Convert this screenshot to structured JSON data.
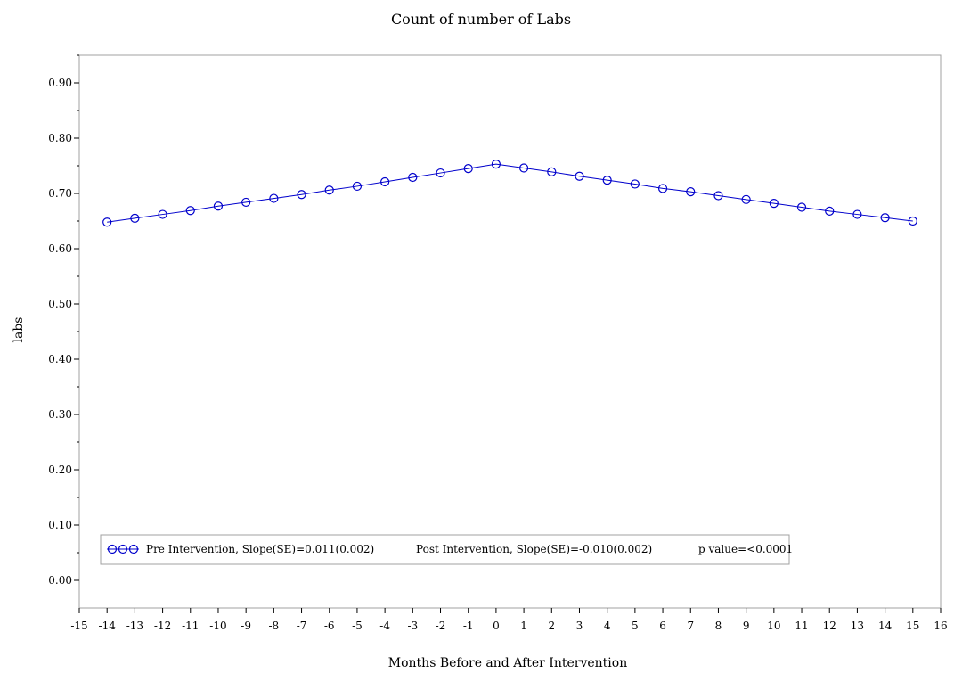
{
  "chart_data": {
    "type": "line",
    "title": "Count of number of Labs",
    "xlabel": "Months Before and After Intervention",
    "ylabel": "labs",
    "xlim": [
      -15,
      16
    ],
    "ylim": [
      -0.05,
      0.95
    ],
    "x_ticks": [
      -15,
      -14,
      -13,
      -12,
      -11,
      -10,
      -9,
      -8,
      -7,
      -6,
      -5,
      -4,
      -3,
      -2,
      -1,
      0,
      1,
      2,
      3,
      4,
      5,
      6,
      7,
      8,
      9,
      10,
      11,
      12,
      13,
      14,
      15,
      16
    ],
    "y_ticks": [
      "0.00",
      "0.10",
      "0.20",
      "0.30",
      "0.40",
      "0.50",
      "0.60",
      "0.70",
      "0.80",
      "0.90"
    ],
    "grid": false,
    "series_color": "#0000cc",
    "x": [
      -14,
      -13,
      -12,
      -11,
      -10,
      -9,
      -8,
      -7,
      -6,
      -5,
      -4,
      -3,
      -2,
      -1,
      0,
      1,
      2,
      3,
      4,
      5,
      6,
      7,
      8,
      9,
      10,
      11,
      12,
      13,
      14,
      15
    ],
    "y": [
      0.648,
      0.655,
      0.662,
      0.669,
      0.677,
      0.684,
      0.691,
      0.698,
      0.706,
      0.713,
      0.721,
      0.729,
      0.737,
      0.745,
      0.753,
      0.746,
      0.739,
      0.731,
      0.724,
      0.717,
      0.709,
      0.703,
      0.696,
      0.689,
      0.682,
      0.675,
      0.668,
      0.662,
      0.656,
      0.65
    ],
    "legend": {
      "placement": "bottom-left",
      "pre_label": "Pre Intervention, Slope(SE)=0.011(0.002)",
      "post_label": "Post Intervention, Slope(SE)=-0.010(0.002)",
      "p_label": "p value=<0.0001"
    }
  }
}
